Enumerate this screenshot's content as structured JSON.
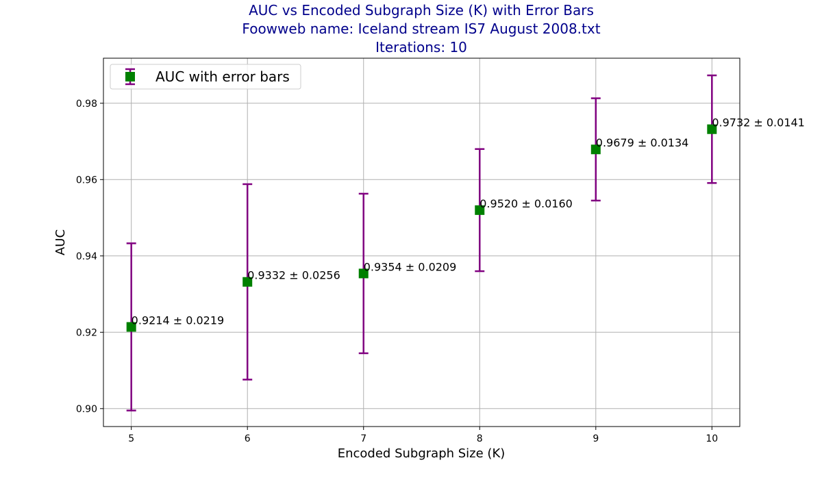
{
  "chart_data": {
    "type": "scatter",
    "title_lines": [
      "AUC vs Encoded Subgraph Size (K) with Error Bars",
      "Foowweb name: Iceland stream IS7 August 2008.txt",
      "Iterations: 10"
    ],
    "xlabel": "Encoded Subgraph Size (K)",
    "ylabel": "AUC",
    "xlim": [
      4.76,
      10.24
    ],
    "ylim": [
      0.8953,
      0.9918
    ],
    "x_ticks": [
      5,
      6,
      7,
      8,
      9,
      10
    ],
    "y_ticks": [
      0.9,
      0.92,
      0.94,
      0.96,
      0.98
    ],
    "grid": true,
    "legend_position": "top-left",
    "series": [
      {
        "name": "AUC with error bars",
        "marker": "square",
        "marker_color": "#008000",
        "errorbar_color": "#800080",
        "points": [
          {
            "x": 5,
            "y": 0.9214,
            "err": 0.0219,
            "label": "0.9214 ± 0.0219"
          },
          {
            "x": 6,
            "y": 0.9332,
            "err": 0.0256,
            "label": "0.9332 ± 0.0256"
          },
          {
            "x": 7,
            "y": 0.9354,
            "err": 0.0209,
            "label": "0.9354 ± 0.0209"
          },
          {
            "x": 8,
            "y": 0.952,
            "err": 0.016,
            "label": "0.9520 ± 0.0160"
          },
          {
            "x": 9,
            "y": 0.9679,
            "err": 0.0134,
            "label": "0.9679 ± 0.0134"
          },
          {
            "x": 10,
            "y": 0.9732,
            "err": 0.0141,
            "label": "0.9732 ± 0.0141"
          }
        ]
      }
    ]
  }
}
